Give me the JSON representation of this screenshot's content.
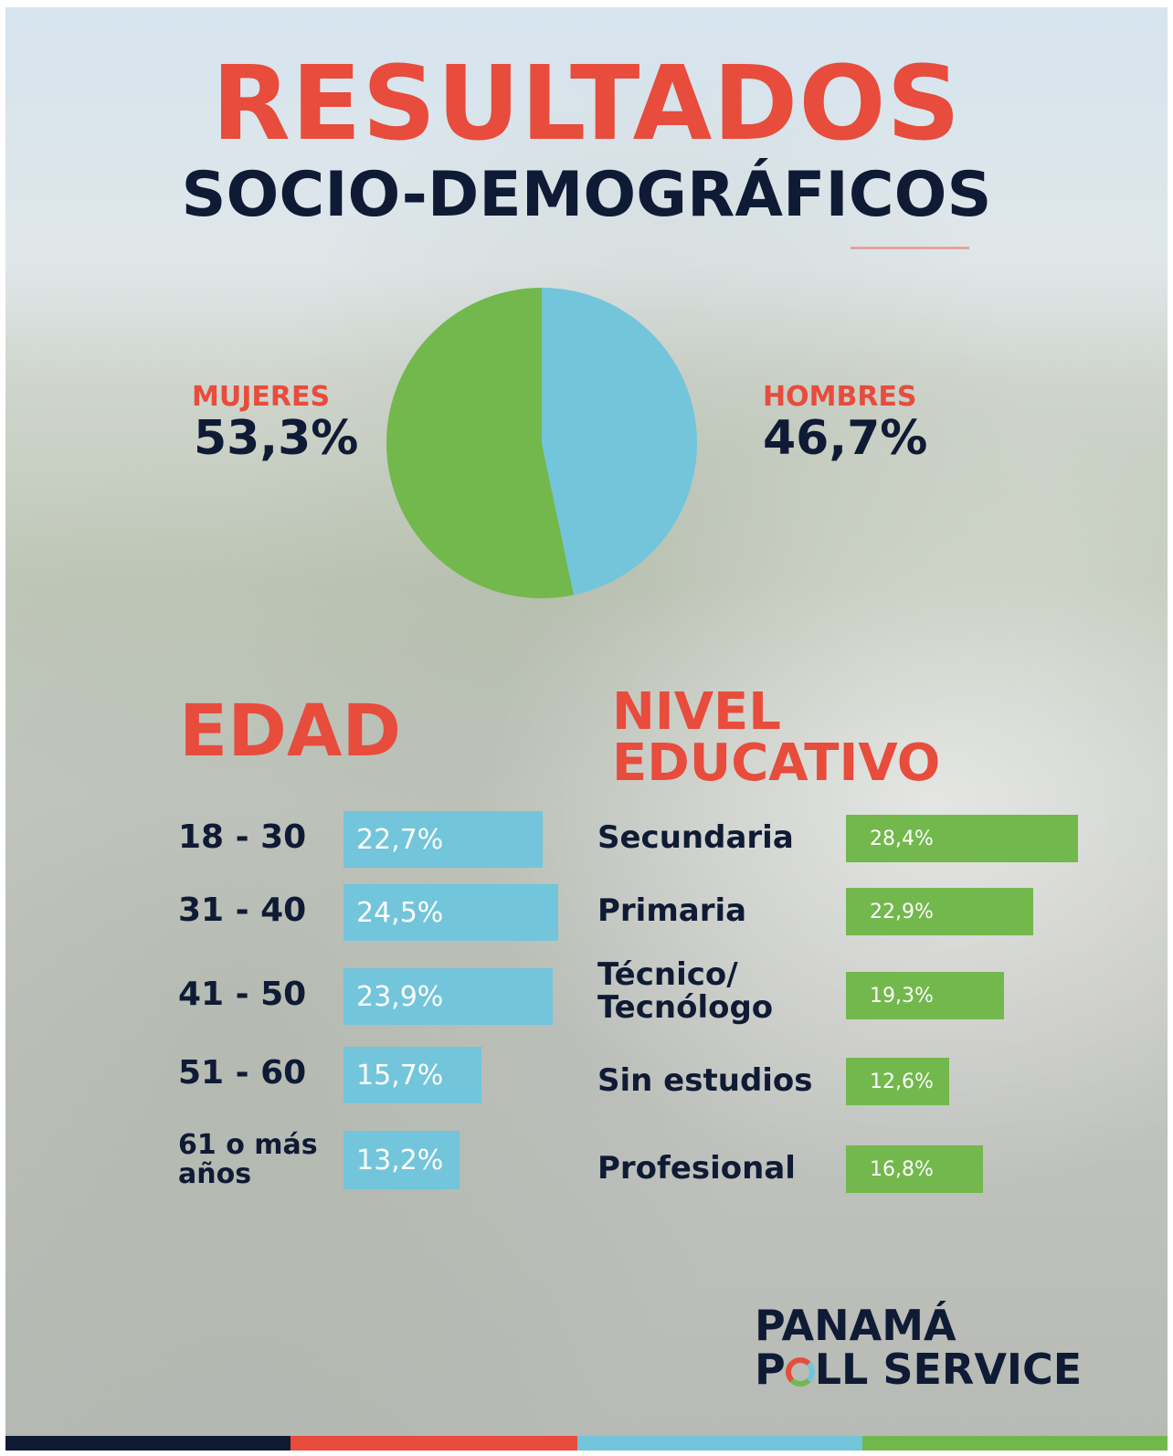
{
  "title": {
    "main": "RESULTADOS",
    "sub": "SOCIO-DEMOGRÁFICOS"
  },
  "gender": {
    "women": {
      "label": "MUJERES",
      "value_text": "53,3%"
    },
    "men": {
      "label": "HOMBRES",
      "value_text": "46,7%"
    }
  },
  "sections": {
    "age_title": "EDAD",
    "education_title_line1": "NIVEL",
    "education_title_line2": "EDUCATIVO"
  },
  "colors": {
    "red": "#e74c3c",
    "navy": "#0f1b35",
    "blue": "#72c5db",
    "green": "#72b84c"
  },
  "logo": {
    "line1": "PANAMÁ",
    "line2_pre": "P",
    "line2_post": "LL SERVICE"
  },
  "chart_data": [
    {
      "type": "pie",
      "categories": [
        "MUJERES",
        "HOMBRES"
      ],
      "values": [
        53.3,
        46.7
      ],
      "colors": [
        "#72b84c",
        "#72c5db"
      ]
    },
    {
      "type": "bar",
      "title": "EDAD",
      "orientation": "horizontal",
      "categories": [
        "18 - 30",
        "31 - 40",
        "41 - 50",
        "51 - 60",
        "61 o más años"
      ],
      "values": [
        22.7,
        24.5,
        23.9,
        15.7,
        13.2
      ],
      "labels": [
        "22,7%",
        "24,5%",
        "23,9%",
        "15,7%",
        "13,2%"
      ],
      "color": "#72c5db"
    },
    {
      "type": "bar",
      "title": "NIVEL EDUCATIVO",
      "orientation": "horizontal",
      "categories": [
        "Secundaria",
        "Primaria",
        "Técnico/ Tecnólogo",
        "Sin estudios",
        "Profesional"
      ],
      "values": [
        28.4,
        22.9,
        19.3,
        12.6,
        16.8
      ],
      "labels": [
        "28,4%",
        "22,9%",
        "19,3%",
        "12,6%",
        "16,8%"
      ],
      "color": "#72b84c"
    }
  ]
}
